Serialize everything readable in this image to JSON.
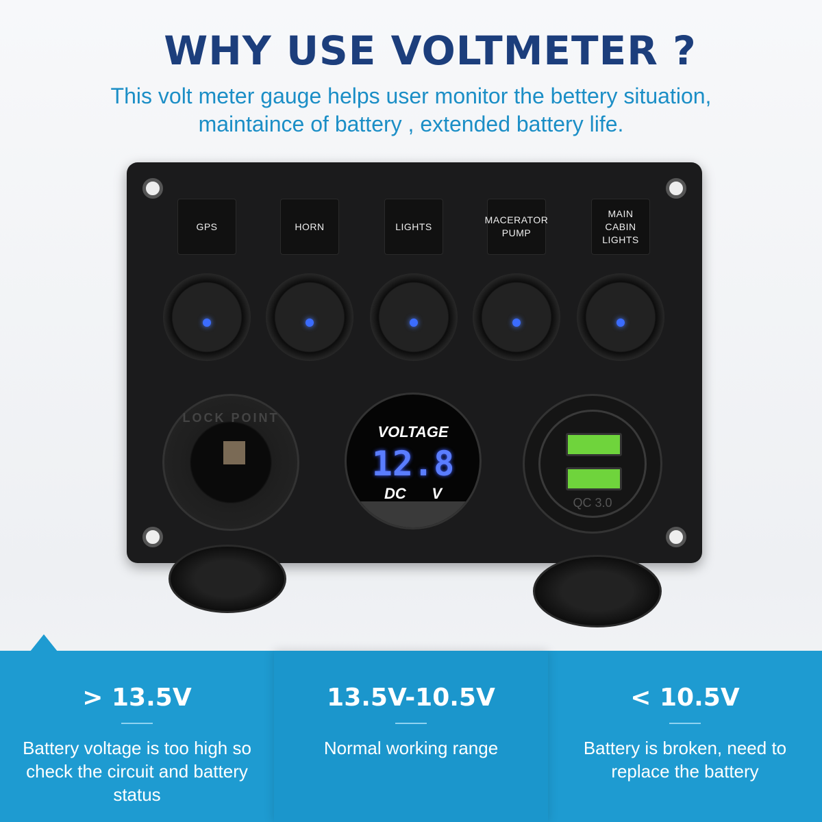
{
  "header": {
    "title": "WHY USE VOLTMETER ?",
    "subtitle_line1": "This volt meter gauge helps user monitor the bettery situation,",
    "subtitle_line2": "maintaince of battery , extended battery life."
  },
  "panel": {
    "switch_labels": [
      "GPS",
      "HORN",
      "LIGHTS",
      "MACERATOR PUMP",
      "MAIN CABIN LIGHTS"
    ],
    "led_color": "#3b6cff",
    "socket_label": "LOCK POINT",
    "voltmeter": {
      "title": "VOLTAGE",
      "reading": "12.8",
      "dc": "DC",
      "unit": "V"
    },
    "usb": {
      "label": "QC 3.0",
      "port_color": "#6fd43c"
    }
  },
  "ranges": [
    {
      "value": "> 13.5V",
      "desc": "Battery voltage is too high so check the circuit and battery status"
    },
    {
      "value": "13.5V-10.5V",
      "desc": "Normal working range"
    },
    {
      "value": "< 10.5V",
      "desc": "Battery is broken, need to replace the battery"
    }
  ],
  "colors": {
    "title": "#1c3e7c",
    "subtitle": "#1b8ec6",
    "band": "#1e9bd1"
  }
}
